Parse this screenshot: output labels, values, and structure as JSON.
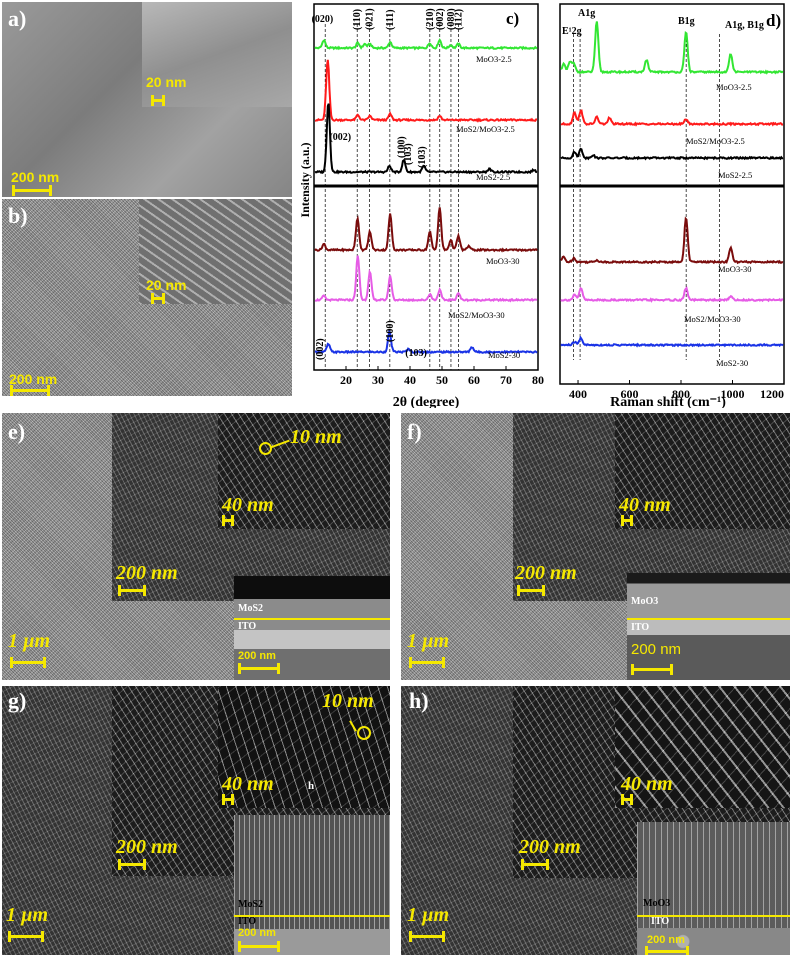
{
  "panels": {
    "a": {
      "label": "a)",
      "inset_scale": "20 nm",
      "main_scale": "200 nm"
    },
    "b": {
      "label": "b)",
      "inset_scale": "20 nm",
      "main_scale": "200 nm"
    },
    "e": {
      "label": "e)",
      "feature": "10",
      "feature_unit": "nm",
      "inset_scale_value": "40",
      "inset_scale_unit": "nm",
      "mid_scale_value": "200",
      "mid_scale_unit": "nm",
      "main_scale_value": "1",
      "main_scale_unit": "µm",
      "layer_top": "MoS2",
      "layer_bottom": "ITO",
      "cross_scale": "200 nm"
    },
    "f": {
      "label": "f)",
      "inset_scale_value": "40",
      "inset_scale_unit": "nm",
      "mid_scale_value": "200",
      "mid_scale_unit": "nm",
      "main_scale_value": "1",
      "main_scale_unit": "µm",
      "layer_top": "MoO3",
      "layer_bottom": "ITO",
      "cross_scale": "200 nm"
    },
    "g": {
      "label": "g)",
      "feature": "10",
      "feature_unit": "nm",
      "feature_h": "h",
      "inset_scale_value": "40",
      "inset_scale_unit": "nm",
      "mid_scale_value": "200",
      "mid_scale_unit": "nm",
      "main_scale_value": "1",
      "main_scale_unit": "µm",
      "layer_top": "MoS2",
      "layer_bottom": "ITO",
      "cross_scale": "200 nm"
    },
    "h": {
      "label": "h)",
      "inset_scale_value": "40",
      "inset_scale_unit": "nm",
      "mid_scale_value": "200",
      "mid_scale_unit": "nm",
      "main_scale_value": "1",
      "main_scale_unit": "µm",
      "layer_top": "MoO3",
      "layer_bottom": "ITO",
      "cross_scale": "200 nm"
    }
  },
  "chart_data": [
    {
      "type": "line",
      "panel_label": "c)",
      "xlabel": "2θ (degree)",
      "ylabel": "Intensity (a.u.)",
      "xlim": [
        10,
        80
      ],
      "xticks": [
        "20",
        "30",
        "40",
        "50",
        "60",
        "70",
        "80"
      ],
      "peak_labels_top": [
        "(020)",
        "(110)",
        "(021)",
        "(111)",
        "(210)",
        "(002)",
        "(080)",
        "(112)"
      ],
      "peak_labels_mos2_2_5": [
        "(002)",
        "(100)",
        "(103)",
        "(103)"
      ],
      "peak_labels_mos2_30": [
        "(002)",
        "(100)",
        "(103)"
      ],
      "dashed_lines_x": [
        13.5,
        23.5,
        27.3,
        33.7,
        46.2,
        49.3,
        52.8,
        55.2
      ],
      "series": [
        {
          "name": "MoO3-2.5",
          "color": "#33e633",
          "peaks": [
            [
              12.8,
              8
            ],
            [
              23.5,
              5
            ],
            [
              25.7,
              4
            ],
            [
              27.3,
              4
            ],
            [
              33.7,
              6
            ],
            [
              46.2,
              5
            ],
            [
              49.3,
              8
            ],
            [
              52.8,
              3
            ],
            [
              55.2,
              4
            ]
          ]
        },
        {
          "name": "MoS2/MoO3-2.5",
          "color": "#ff1a1a",
          "peaks": [
            [
              14.0,
              60
            ],
            [
              23.5,
              5
            ],
            [
              27.3,
              4
            ],
            [
              33.7,
              6
            ],
            [
              49.3,
              4
            ]
          ]
        },
        {
          "name": "MoS2-2.5",
          "color": "#000000",
          "peaks": [
            [
              14.2,
              70
            ],
            [
              33.5,
              6
            ],
            [
              38.0,
              12
            ],
            [
              44.3,
              6
            ],
            [
              65.0,
              3
            ],
            [
              79.0,
              2
            ]
          ]
        },
        {
          "name": "MoO3-30",
          "color": "#7a0c0c",
          "peaks": [
            [
              12.8,
              6
            ],
            [
              23.4,
              32
            ],
            [
              27.3,
              18
            ],
            [
              33.7,
              36
            ],
            [
              46.2,
              18
            ],
            [
              49.3,
              42
            ],
            [
              52.8,
              10
            ],
            [
              55.2,
              14
            ],
            [
              58.5,
              4
            ]
          ]
        },
        {
          "name": "MoS2/MoO3-30",
          "color": "#e65ce6",
          "peaks": [
            [
              12.8,
              4
            ],
            [
              23.5,
              44
            ],
            [
              27.3,
              28
            ],
            [
              33.7,
              24
            ],
            [
              46.2,
              6
            ],
            [
              49.3,
              10
            ],
            [
              55.2,
              7
            ]
          ]
        },
        {
          "name": "MoS2-30",
          "color": "#1a33e6",
          "peaks": [
            [
              14.2,
              8
            ],
            [
              33.5,
              20
            ],
            [
              39.5,
              3
            ],
            [
              59.5,
              5
            ]
          ]
        }
      ]
    },
    {
      "type": "line",
      "panel_label": "d)",
      "xlabel": "Raman shift (cm⁻¹)",
      "xlim": [
        330,
        1200
      ],
      "xticks": [
        "400",
        "600",
        "800",
        "1000",
        "1200"
      ],
      "peak_labels": [
        "E¹2g",
        "A1g",
        "B1g",
        "A1g, B1g"
      ],
      "dashed_lines_x": [
        383,
        408,
        820,
        950
      ],
      "series": [
        {
          "name": "MoO3-2.5",
          "color": "#33e633",
          "peaks": [
            [
              340,
              8
            ],
            [
              365,
              10
            ],
            [
              380,
              8
            ],
            [
              470,
              50
            ],
            [
              665,
              12
            ],
            [
              820,
              40
            ],
            [
              995,
              18
            ]
          ]
        },
        {
          "name": "MoS2/MoO3-2.5",
          "color": "#ff1a1a",
          "peaks": [
            [
              383,
              12
            ],
            [
              408,
              14
            ],
            [
              470,
              7
            ],
            [
              520,
              6
            ],
            [
              820,
              5
            ]
          ]
        },
        {
          "name": "MoS2-2.5",
          "color": "#000000",
          "peaks": [
            [
              383,
              6
            ],
            [
              408,
              9
            ],
            [
              455,
              3
            ]
          ]
        },
        {
          "name": "MoO3-30",
          "color": "#7a0c0c",
          "peaks": [
            [
              340,
              5
            ],
            [
              380,
              4
            ],
            [
              470,
              2
            ],
            [
              820,
              45
            ],
            [
              995,
              14
            ]
          ]
        },
        {
          "name": "MoS2/MoO3-30",
          "color": "#e65ce6",
          "peaks": [
            [
              383,
              5
            ],
            [
              408,
              12
            ],
            [
              820,
              12
            ],
            [
              995,
              4
            ]
          ]
        },
        {
          "name": "MoS2-30",
          "color": "#1a33e6",
          "peaks": [
            [
              383,
              3
            ],
            [
              408,
              7
            ]
          ]
        }
      ]
    }
  ]
}
